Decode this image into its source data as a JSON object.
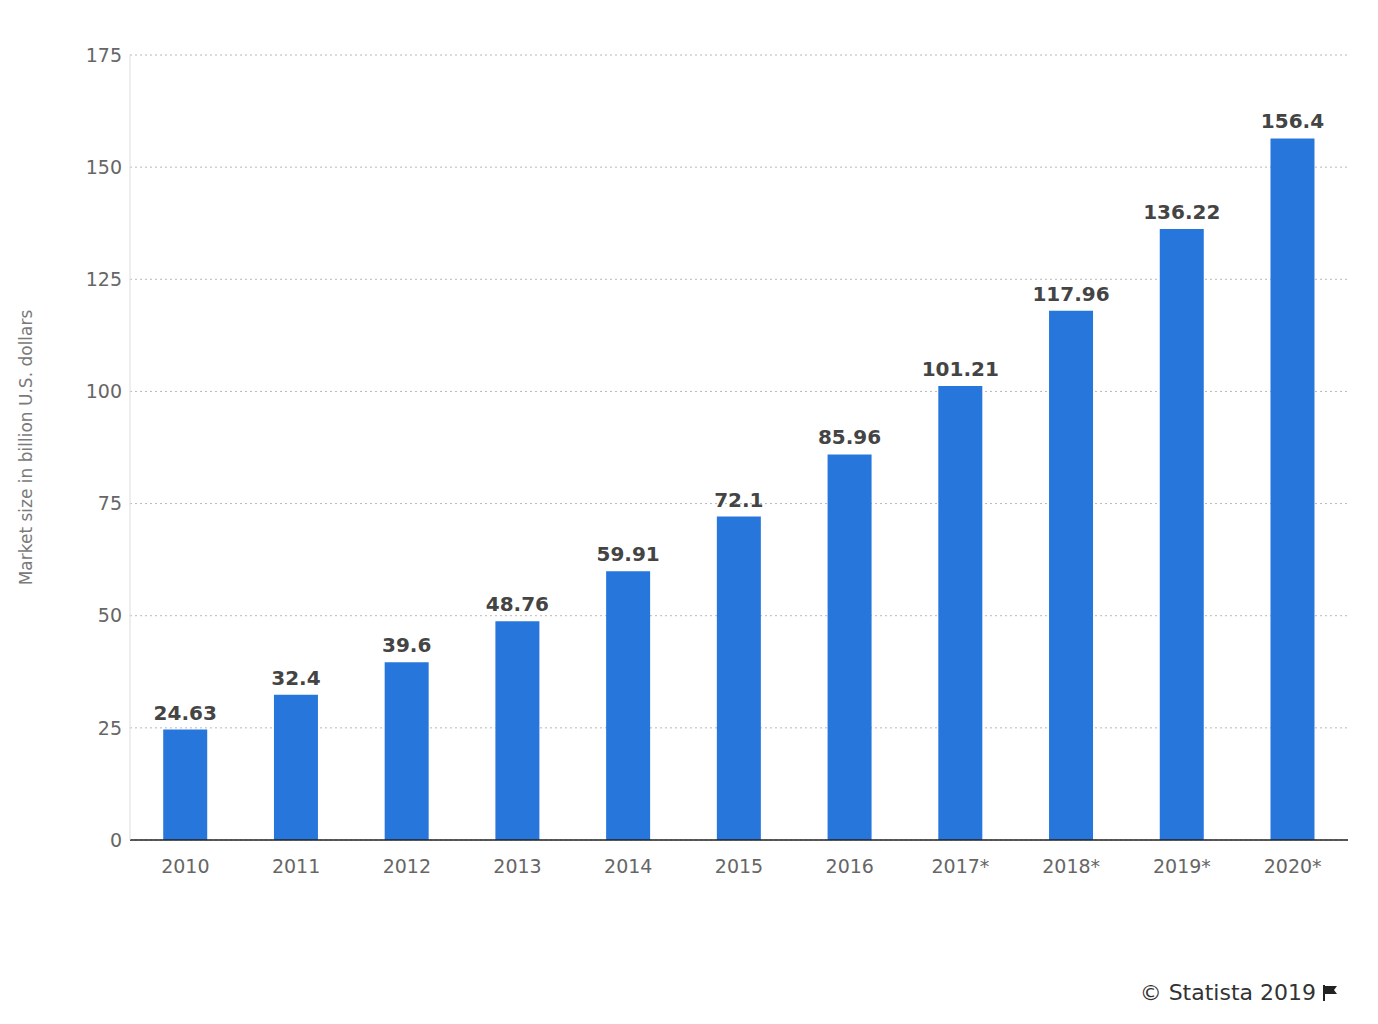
{
  "chart_data": {
    "type": "bar",
    "y_label": "Market size in billion U.S. dollars",
    "categories": [
      "2010",
      "2011",
      "2012",
      "2013",
      "2014",
      "2015",
      "2016",
      "2017*",
      "2018*",
      "2019*",
      "2020*"
    ],
    "values": [
      24.63,
      32.4,
      39.6,
      48.76,
      59.91,
      72.1,
      85.96,
      101.21,
      117.96,
      136.22,
      156.4
    ],
    "color": "#2776dc",
    "ylim": [
      0,
      175
    ],
    "yticks": [
      0,
      25,
      50,
      75,
      100,
      125,
      150,
      175
    ],
    "grid": true,
    "data_labels": true,
    "annotations": [
      "© Statista 2019"
    ]
  }
}
